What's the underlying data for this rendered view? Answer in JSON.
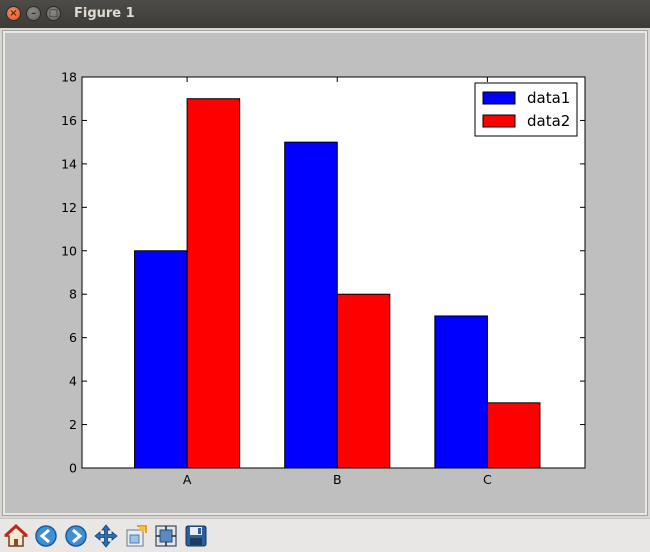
{
  "window": {
    "title": "Figure 1"
  },
  "toolbar": {
    "buttons": [
      {
        "name": "home-button",
        "icon": "home-icon"
      },
      {
        "name": "back-button",
        "icon": "arrow-left-icon"
      },
      {
        "name": "forward-button",
        "icon": "arrow-right-icon"
      },
      {
        "name": "pan-button",
        "icon": "pan-icon"
      },
      {
        "name": "zoom-button",
        "icon": "zoom-rect-icon"
      },
      {
        "name": "subplots-button",
        "icon": "subplots-icon"
      },
      {
        "name": "save-button",
        "icon": "save-icon"
      }
    ]
  },
  "chart_data": {
    "type": "bar",
    "categories": [
      "A",
      "B",
      "C"
    ],
    "series": [
      {
        "name": "data1",
        "values": [
          10,
          15,
          7
        ],
        "color": "#0000ff"
      },
      {
        "name": "data2",
        "values": [
          17,
          8,
          3
        ],
        "color": "#ff0000"
      }
    ],
    "title": "",
    "xlabel": "",
    "ylabel": "",
    "ylim": [
      0,
      18
    ],
    "yticks": [
      0,
      2,
      4,
      6,
      8,
      10,
      12,
      14,
      16,
      18
    ],
    "grid": false,
    "legend_position": "top-right",
    "colors": {
      "figure_bg": "#bfbfbf",
      "axes_bg": "#ffffff"
    }
  }
}
